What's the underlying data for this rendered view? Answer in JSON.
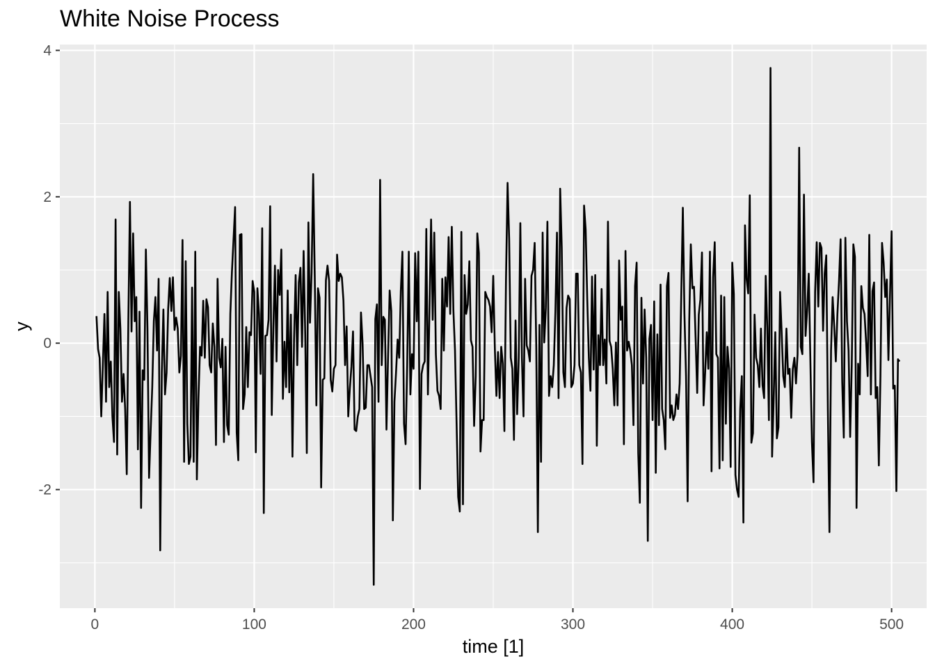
{
  "chart_data": {
    "type": "line",
    "title": "White Noise Process",
    "xlabel": "time [1]",
    "ylabel": "y",
    "xlim": [
      -22,
      522
    ],
    "ylim": [
      -3.62,
      4.08
    ],
    "x_ticks": [
      0,
      100,
      200,
      300,
      400,
      500
    ],
    "y_ticks": [
      -2,
      0,
      2,
      4
    ],
    "grid": true,
    "legend": "none",
    "colors": {
      "panel": "#ebebeb",
      "grid": "#ffffff",
      "line": "#000000",
      "tick_text": "#4d4d4d"
    },
    "series": [
      {
        "x_start": 1,
        "x_step": 1,
        "values": [
          0.37,
          -0.08,
          -0.2,
          -1.0,
          -0.3,
          0.4,
          -0.8,
          0.7,
          -0.6,
          -0.25,
          -1.0,
          -1.35,
          1.69,
          -1.52,
          0.7,
          0.2,
          -0.8,
          -0.42,
          -0.9,
          -1.79,
          0.3,
          1.93,
          0.16,
          1.5,
          0.3,
          0.63,
          -1.45,
          0.43,
          -2.25,
          -0.37,
          -0.5,
          1.28,
          0.2,
          -1.84,
          -1.2,
          -0.6,
          0.3,
          0.63,
          -0.1,
          0.88,
          -2.83,
          -0.4,
          0.46,
          -0.7,
          -0.4,
          0.47,
          0.89,
          0.44,
          0.9,
          0.18,
          0.35,
          0.2,
          -0.4,
          -0.17,
          1.41,
          -1.62,
          1.12,
          -1.1,
          -1.65,
          -1.55,
          0.76,
          -1.62,
          1.25,
          -1.86,
          -0.75,
          -0.05,
          -0.17,
          0.58,
          -0.2,
          0.6,
          0.49,
          -0.3,
          -0.4,
          0.27,
          -0.05,
          -1.39,
          0.88,
          -0.2,
          -0.33,
          0.06,
          -1.35,
          -0.05,
          -1.12,
          -1.25,
          0.4,
          0.97,
          1.41,
          1.86,
          -1.22,
          -1.6,
          1.48,
          1.49,
          -0.9,
          -0.7,
          0.22,
          -0.6,
          0.15,
          0.11,
          0.85,
          0.7,
          -1.49,
          0.75,
          0.4,
          -0.42,
          1.57,
          -2.32,
          0.1,
          0.11,
          0.32,
          1.87,
          -0.98,
          0.2,
          1.06,
          -0.25,
          1.0,
          0.66,
          1.28,
          -0.76,
          0.02,
          -0.6,
          0.72,
          -0.67,
          0.39,
          -1.55,
          0.05,
          0.93,
          -0.3,
          0.83,
          1.03,
          -0.05,
          1.26,
          0.12,
          -1.5,
          1.65,
          0.28,
          0.96,
          2.31,
          0.9,
          -0.85,
          0.75,
          0.62,
          -1.97,
          -0.5,
          -0.48,
          0.86,
          1.06,
          0.85,
          -0.5,
          -0.66,
          -0.35,
          -0.3,
          1.21,
          0.85,
          0.95,
          0.9,
          0.58,
          -0.3,
          0.23,
          -1.0,
          -0.62,
          -0.32,
          0.16,
          -1.18,
          -1.2,
          -1.0,
          -0.9,
          0.42,
          0.0,
          -0.9,
          -0.88,
          -0.3,
          -0.3,
          -0.45,
          -0.6,
          -3.3,
          0.33,
          0.53,
          -0.8,
          2.23,
          -0.3,
          0.36,
          0.32,
          -1.18,
          -0.18,
          0.72,
          0.44,
          -2.42,
          -0.8,
          -0.4,
          0.05,
          -0.2,
          0.71,
          1.25,
          -1.1,
          -1.38,
          -0.3,
          1.25,
          -0.7,
          -0.15,
          -0.35,
          1.23,
          0.3,
          1.25,
          -1.99,
          -0.42,
          -0.3,
          -0.25,
          1.56,
          -0.7,
          0.48,
          1.69,
          0.32,
          1.51,
          -0.15,
          -0.65,
          -0.72,
          -0.9,
          0.88,
          -0.1,
          0.9,
          0.5,
          1.45,
          0.4,
          1.59,
          0.45,
          -0.1,
          -1.1,
          -2.1,
          -2.3,
          1.52,
          -2.2,
          0.93,
          0.4,
          0.53,
          1.12,
          0.04,
          -0.05,
          -1.13,
          -0.45,
          1.5,
          1.23,
          -1.48,
          -1.05,
          -1.05,
          0.7,
          0.63,
          0.59,
          0.5,
          0.15,
          0.92,
          -0.07,
          -0.72,
          -0.12,
          -0.75,
          -0.05,
          -0.28,
          -1.2,
          0.86,
          2.19,
          1.42,
          -0.2,
          -0.35,
          -1.32,
          0.31,
          -0.97,
          -0.2,
          1.64,
          -0.2,
          -1.0,
          0.88,
          -0.03,
          -0.1,
          -0.25,
          0.92,
          1.0,
          1.37,
          -0.05,
          -2.58,
          0.25,
          -1.62,
          1.51,
          0.01,
          0.48,
          1.66,
          -0.72,
          -0.45,
          -0.6,
          -0.3,
          0.43,
          1.51,
          -0.75,
          2.11,
          1.3,
          -0.4,
          -0.6,
          0.48,
          0.65,
          0.6,
          -0.6,
          -0.55,
          -0.3,
          0.95,
          0.95,
          -0.3,
          -0.4,
          -1.65,
          1.88,
          1.55,
          0.6,
          -0.2,
          -0.65,
          0.91,
          -0.36,
          0.93,
          -1.4,
          0.11,
          -0.3,
          0.74,
          -0.3,
          0.05,
          -0.55,
          1.66,
          0.03,
          -0.05,
          -0.35,
          -0.85,
          0.01,
          -0.85,
          1.13,
          0.32,
          0.5,
          -1.38,
          1.26,
          -0.1,
          0.02,
          -0.1,
          -0.3,
          -1.12,
          0.78,
          1.1,
          -1.5,
          -2.18,
          0.62,
          -0.55,
          0.46,
          -0.2,
          -2.7,
          0.06,
          0.25,
          -1.05,
          0.57,
          -1.77,
          0.12,
          -1.12,
          0.8,
          -0.9,
          -1.05,
          -1.45,
          0.78,
          0.96,
          -1.02,
          -0.85,
          -1.05,
          -0.98,
          -0.7,
          -0.9,
          -0.55,
          0.66,
          1.85,
          0.4,
          -0.45,
          -2.16,
          0.3,
          1.35,
          0.75,
          0.77,
          0.07,
          -0.68,
          0.39,
          0.6,
          1.24,
          -0.85,
          -0.4,
          0.15,
          -0.35,
          1.25,
          -1.75,
          0.9,
          1.38,
          -0.15,
          -0.2,
          -1.71,
          0.65,
          -1.6,
          0.63,
          -1.1,
          -0.05,
          -0.35,
          -1.69,
          1.1,
          0.67,
          -1.8,
          -2.0,
          -2.1,
          -0.9,
          -0.45,
          -2.45,
          1.61,
          0.88,
          0.68,
          2.02,
          -1.36,
          -1.23,
          0.39,
          -0.2,
          -0.3,
          -0.6,
          0.2,
          -0.57,
          -0.75,
          0.92,
          0.2,
          -1.05,
          3.76,
          -1.55,
          -0.75,
          0.15,
          -1.3,
          -1.15,
          0.7,
          0.15,
          -0.45,
          -0.6,
          0.2,
          -0.42,
          -0.35,
          -1.02,
          -0.35,
          -0.2,
          -0.55,
          -0.15,
          2.67,
          -0.05,
          -0.15,
          2.03,
          0.1,
          0.45,
          0.95,
          -0.2,
          -1.35,
          -1.9,
          0.7,
          1.38,
          0.5,
          1.37,
          1.3,
          0.17,
          0.95,
          1.2,
          -0.9,
          -2.58,
          -0.1,
          0.63,
          0.23,
          -0.25,
          0.4,
          0.85,
          1.42,
          -0.52,
          -1.29,
          1.44,
          0.3,
          -0.1,
          -1.28,
          -0.3,
          1.35,
          1.18,
          -2.25,
          -0.28,
          -0.7,
          0.78,
          0.48,
          0.4,
          0.02,
          -0.45,
          1.48,
          -0.7,
          0.71,
          0.83,
          -0.75,
          -0.6,
          -1.67,
          -0.45,
          1.37,
          1.1,
          0.63,
          0.87,
          -0.23,
          0.65,
          1.53,
          -0.62,
          -0.58,
          -2.02,
          -0.22,
          -0.25
        ]
      }
    ]
  }
}
